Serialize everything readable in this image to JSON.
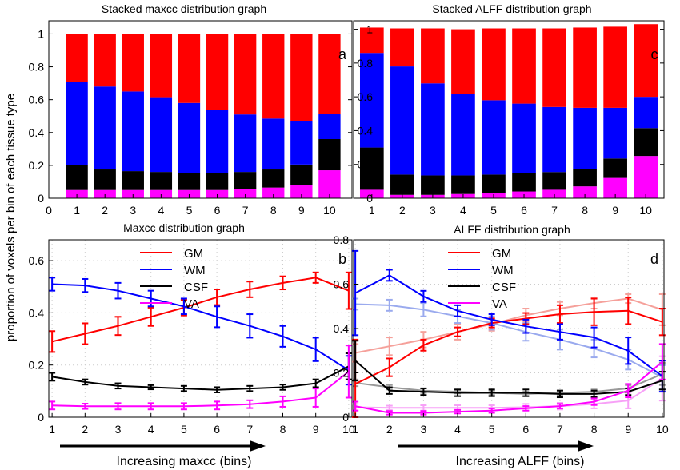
{
  "figure": {
    "ylabel": "proportion of voxels per bin of each tissue type",
    "colors": {
      "GM": "#ff0000",
      "WM": "#0000ff",
      "CSF": "#000000",
      "VA": "#ff00ff",
      "GM_faded": "#f5a09a",
      "WM_faded": "#9aaaee",
      "CSF_faded": "#999999",
      "VA_faded": "#f7a0f7"
    }
  },
  "chart_data": [
    {
      "id": "a",
      "type": "bar",
      "stacked": true,
      "title": "Stacked maxcc distribution graph",
      "panel_label": "a",
      "categories": [
        "1",
        "2",
        "3",
        "4",
        "5",
        "6",
        "7",
        "8",
        "9",
        "10"
      ],
      "x_ticks": [
        "0",
        "1",
        "2",
        "3",
        "4",
        "5",
        "6",
        "7",
        "8",
        "9",
        "10"
      ],
      "y_ticks": [
        "0",
        "0.2",
        "0.4",
        "0.6",
        "0.8",
        "1"
      ],
      "ylim": [
        0,
        1.08
      ],
      "xlim": [
        0,
        10.8
      ],
      "series": [
        {
          "name": "VA",
          "values": [
            0.05,
            0.05,
            0.05,
            0.05,
            0.05,
            0.05,
            0.055,
            0.065,
            0.08,
            0.17
          ]
        },
        {
          "name": "CSF",
          "values": [
            0.15,
            0.125,
            0.115,
            0.11,
            0.105,
            0.105,
            0.105,
            0.11,
            0.125,
            0.19
          ]
        },
        {
          "name": "WM",
          "values": [
            0.51,
            0.505,
            0.485,
            0.455,
            0.425,
            0.385,
            0.35,
            0.31,
            0.265,
            0.155
          ]
        },
        {
          "name": "GM",
          "values": [
            0.29,
            0.32,
            0.35,
            0.385,
            0.42,
            0.46,
            0.49,
            0.515,
            0.53,
            0.485
          ]
        }
      ]
    },
    {
      "id": "c",
      "type": "bar",
      "stacked": true,
      "title": "Stacked ALFF distribution graph",
      "panel_label": "c",
      "categories": [
        "1",
        "2",
        "3",
        "4",
        "5",
        "6",
        "7",
        "8",
        "9",
        "10"
      ],
      "x_ticks": [
        "1",
        "2",
        "3",
        "4",
        "5",
        "6",
        "7",
        "8",
        "9",
        "10"
      ],
      "y_ticks": [
        "0",
        "0.2",
        "0.4",
        "0.6",
        "0.8",
        "1"
      ],
      "ylim": [
        0,
        1.05
      ],
      "xlim": [
        0.4,
        10.6
      ],
      "series": [
        {
          "name": "VA",
          "values": [
            0.05,
            0.02,
            0.02,
            0.025,
            0.03,
            0.04,
            0.05,
            0.07,
            0.12,
            0.25
          ]
        },
        {
          "name": "CSF",
          "values": [
            0.25,
            0.12,
            0.115,
            0.11,
            0.11,
            0.11,
            0.105,
            0.105,
            0.115,
            0.165
          ]
        },
        {
          "name": "WM",
          "values": [
            0.56,
            0.64,
            0.545,
            0.48,
            0.44,
            0.41,
            0.385,
            0.36,
            0.3,
            0.185
          ]
        },
        {
          "name": "GM",
          "values": [
            0.15,
            0.225,
            0.325,
            0.385,
            0.425,
            0.445,
            0.465,
            0.475,
            0.48,
            0.43
          ]
        }
      ]
    },
    {
      "id": "b",
      "type": "line",
      "title": "Maxcc distribution graph",
      "panel_label": "b",
      "x": [
        1,
        2,
        3,
        4,
        5,
        6,
        7,
        8,
        9,
        10
      ],
      "x_ticks": [
        "1",
        "2",
        "3",
        "4",
        "5",
        "6",
        "7",
        "8",
        "9",
        "10"
      ],
      "y_ticks": [
        "0",
        "0.2",
        "0.4",
        "0.6"
      ],
      "ylim": [
        0,
        0.68
      ],
      "xlim": [
        0.9,
        10.1
      ],
      "grid": true,
      "legend": "top-center",
      "series": [
        {
          "name": "GM",
          "values": [
            0.29,
            0.32,
            0.35,
            0.385,
            0.42,
            0.46,
            0.49,
            0.515,
            0.535,
            0.485
          ],
          "errors": [
            0.04,
            0.04,
            0.035,
            0.035,
            0.03,
            0.03,
            0.03,
            0.025,
            0.02,
            0.07
          ]
        },
        {
          "name": "WM",
          "values": [
            0.51,
            0.505,
            0.485,
            0.455,
            0.425,
            0.385,
            0.35,
            0.31,
            0.26,
            0.18
          ],
          "errors": [
            0.025,
            0.025,
            0.03,
            0.03,
            0.03,
            0.04,
            0.045,
            0.04,
            0.045,
            0.055
          ]
        },
        {
          "name": "CSF",
          "values": [
            0.155,
            0.135,
            0.12,
            0.115,
            0.11,
            0.105,
            0.11,
            0.115,
            0.13,
            0.195
          ],
          "errors": [
            0.015,
            0.01,
            0.01,
            0.008,
            0.01,
            0.01,
            0.01,
            0.01,
            0.015,
            0.05
          ]
        },
        {
          "name": "VA",
          "values": [
            0.045,
            0.042,
            0.042,
            0.042,
            0.042,
            0.045,
            0.05,
            0.06,
            0.075,
            0.175
          ],
          "errors": [
            0.015,
            0.01,
            0.012,
            0.012,
            0.012,
            0.015,
            0.015,
            0.02,
            0.035,
            0.1
          ]
        }
      ]
    },
    {
      "id": "d",
      "type": "line",
      "title": "ALFF distribution graph",
      "panel_label": "d",
      "x": [
        1,
        2,
        3,
        4,
        5,
        6,
        7,
        8,
        9,
        10
      ],
      "x_ticks": [
        "1",
        "2",
        "3",
        "4",
        "5",
        "6",
        "7",
        "8",
        "9",
        "10"
      ],
      "y_ticks": [
        "0",
        "0.2",
        "0.4",
        "0.6",
        "0.8"
      ],
      "ylim": [
        0,
        0.8
      ],
      "xlim": [
        0.95,
        10.05
      ],
      "grid": true,
      "legend": "top-center",
      "series": [
        {
          "name": "GM",
          "values": [
            0.15,
            0.225,
            0.325,
            0.385,
            0.425,
            0.445,
            0.465,
            0.475,
            0.48,
            0.43
          ],
          "errors": [
            0.2,
            0.04,
            0.025,
            0.02,
            0.02,
            0.025,
            0.04,
            0.06,
            0.06,
            0.06
          ]
        },
        {
          "name": "WM",
          "values": [
            0.56,
            0.64,
            0.545,
            0.48,
            0.44,
            0.41,
            0.385,
            0.36,
            0.3,
            0.185
          ],
          "errors": [
            0.19,
            0.025,
            0.025,
            0.025,
            0.025,
            0.03,
            0.035,
            0.045,
            0.06,
            0.07
          ]
        },
        {
          "name": "CSF",
          "values": [
            0.255,
            0.12,
            0.115,
            0.11,
            0.11,
            0.11,
            0.105,
            0.105,
            0.115,
            0.165
          ],
          "errors": [
            0.09,
            0.015,
            0.015,
            0.015,
            0.015,
            0.015,
            0.015,
            0.015,
            0.015,
            0.04
          ]
        },
        {
          "name": "VA",
          "values": [
            0.05,
            0.02,
            0.02,
            0.025,
            0.03,
            0.04,
            0.05,
            0.07,
            0.12,
            0.25
          ],
          "errors": [
            0.02,
            0.008,
            0.008,
            0.008,
            0.01,
            0.01,
            0.01,
            0.015,
            0.03,
            0.08
          ]
        }
      ],
      "faded_series": [
        {
          "name": "GM",
          "values": [
            0.29,
            0.32,
            0.35,
            0.385,
            0.42,
            0.46,
            0.49,
            0.515,
            0.535,
            0.485
          ],
          "errors": [
            0.04,
            0.04,
            0.035,
            0.035,
            0.03,
            0.03,
            0.03,
            0.025,
            0.02,
            0.07
          ]
        },
        {
          "name": "WM",
          "values": [
            0.51,
            0.505,
            0.485,
            0.455,
            0.425,
            0.385,
            0.35,
            0.31,
            0.26,
            0.18
          ],
          "errors": [
            0.025,
            0.025,
            0.03,
            0.03,
            0.03,
            0.04,
            0.045,
            0.04,
            0.045,
            0.055
          ]
        },
        {
          "name": "CSF",
          "values": [
            0.155,
            0.135,
            0.12,
            0.115,
            0.11,
            0.105,
            0.11,
            0.115,
            0.13,
            0.195
          ],
          "errors": [
            0.015,
            0.01,
            0.01,
            0.008,
            0.01,
            0.01,
            0.01,
            0.01,
            0.015,
            0.05
          ]
        },
        {
          "name": "VA",
          "values": [
            0.045,
            0.042,
            0.042,
            0.042,
            0.042,
            0.045,
            0.05,
            0.06,
            0.075,
            0.175
          ],
          "errors": [
            0.015,
            0.01,
            0.012,
            0.012,
            0.012,
            0.015,
            0.015,
            0.02,
            0.035,
            0.1
          ]
        }
      ]
    }
  ],
  "arrows": {
    "left": {
      "label": "Increasing maxcc (bins)"
    },
    "right": {
      "label": "Increasing ALFF (bins)"
    }
  }
}
